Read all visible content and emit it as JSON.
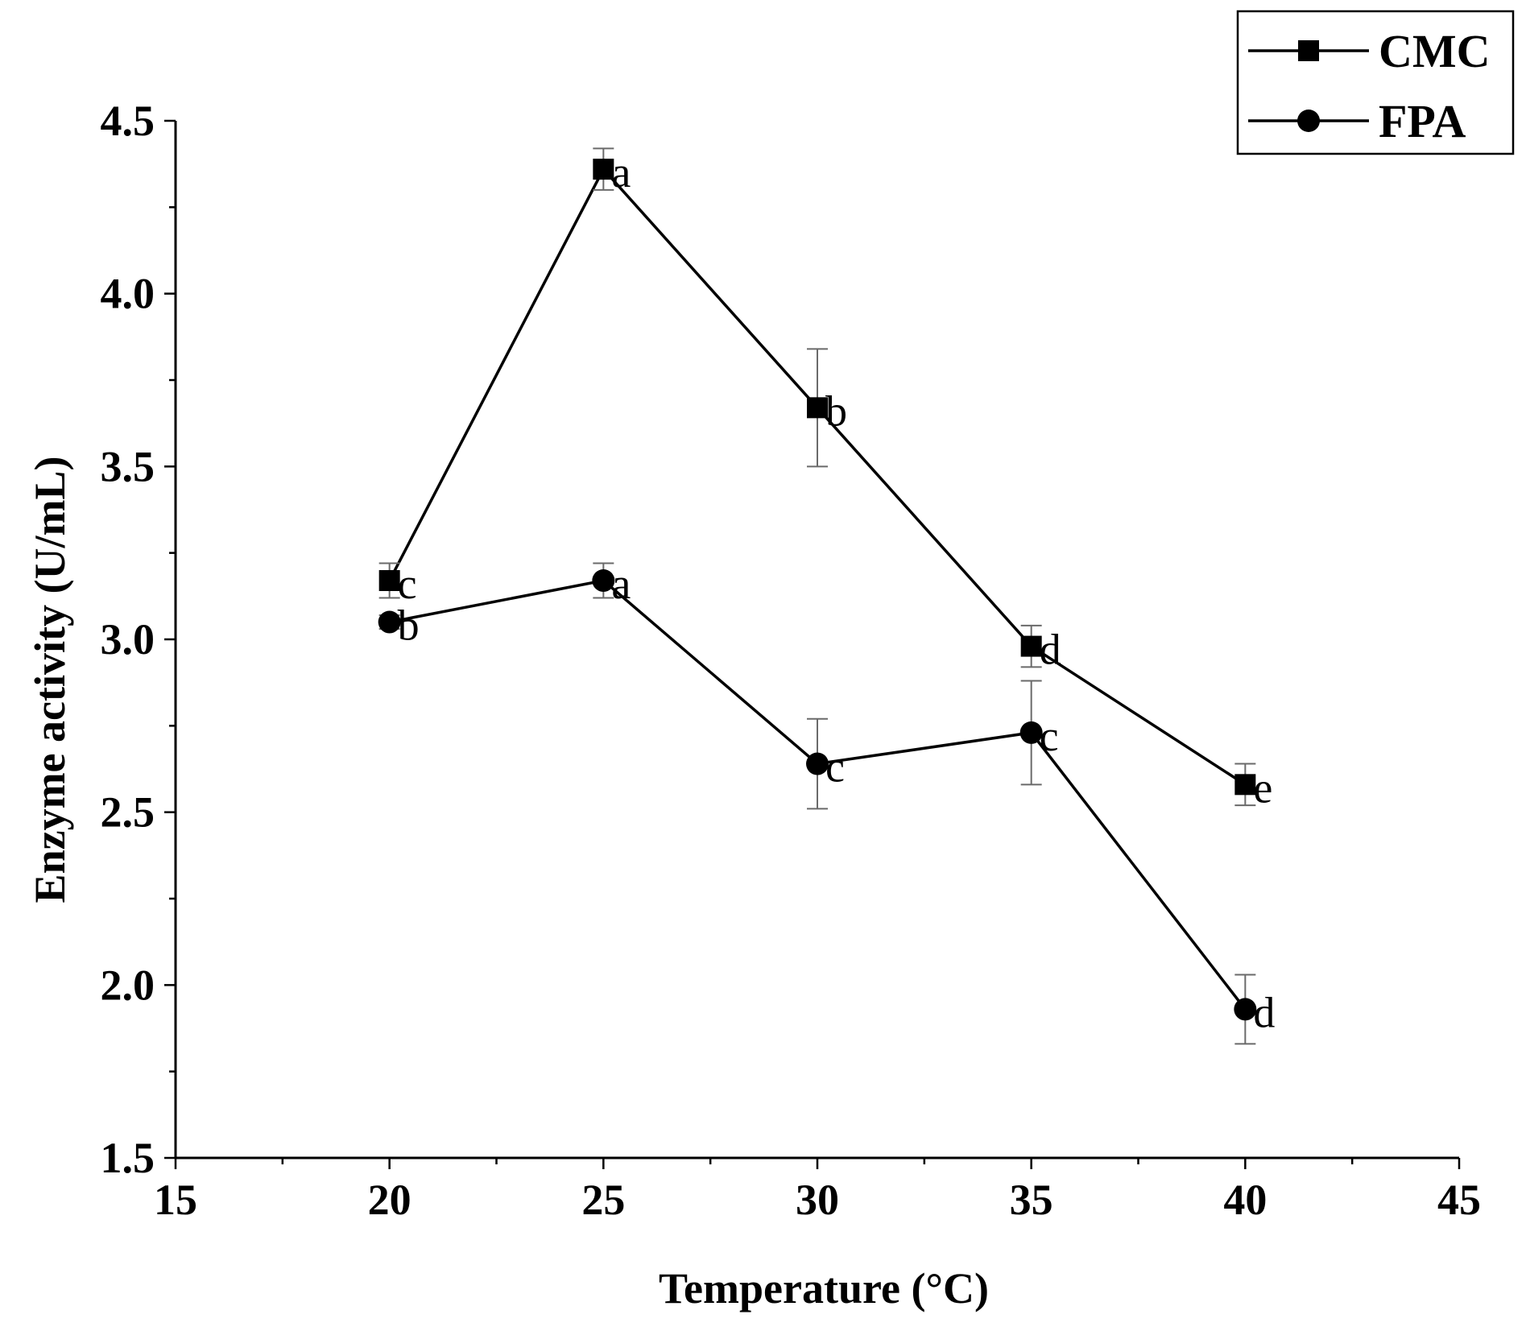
{
  "chart_data": {
    "type": "line",
    "title": "",
    "xlabel": "Temperature (°C)",
    "ylabel": "Enzyme activity (U/mL)",
    "xlim": [
      15,
      45
    ],
    "ylim": [
      1.5,
      4.5
    ],
    "x_ticks": [
      15,
      20,
      25,
      30,
      35,
      40,
      45
    ],
    "x_tick_labels": [
      "15",
      "20",
      "25",
      "30",
      "35",
      "40",
      "45"
    ],
    "y_ticks": [
      1.5,
      2.0,
      2.5,
      3.0,
      3.5,
      4.0,
      4.5
    ],
    "y_tick_labels": [
      "1.5",
      "2.0",
      "2.5",
      "3.0",
      "3.5",
      "4.0",
      "4.5"
    ],
    "legend_position": "top-right",
    "grid": false,
    "series": [
      {
        "name": "CMC",
        "marker": "square",
        "x": [
          20,
          25,
          30,
          35,
          40
        ],
        "values": [
          3.17,
          4.36,
          3.67,
          2.98,
          2.58
        ],
        "errors": [
          0.05,
          0.06,
          0.17,
          0.06,
          0.06
        ],
        "labels": [
          "c",
          "a",
          "b",
          "d",
          "e"
        ]
      },
      {
        "name": "FPA",
        "marker": "circle",
        "x": [
          20,
          25,
          30,
          35,
          40
        ],
        "values": [
          3.05,
          3.17,
          2.64,
          2.73,
          1.93
        ],
        "errors": [
          0.02,
          0.05,
          0.13,
          0.15,
          0.1
        ],
        "labels": [
          "b",
          "a",
          "c",
          "c",
          "d"
        ]
      }
    ]
  }
}
